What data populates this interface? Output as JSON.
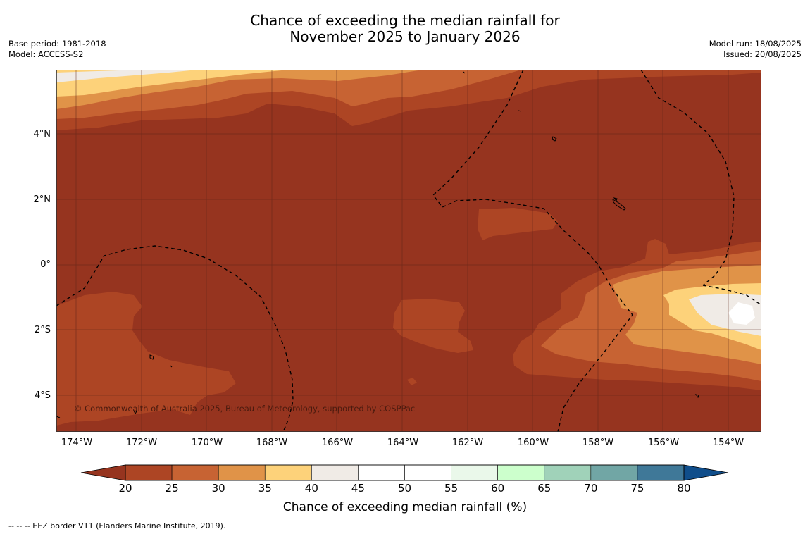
{
  "title": "Chance of exceeding the median rainfall for\nNovember 2025 to January 2026",
  "base_period": "Base period: 1981-2018",
  "model": "Model: ACCESS-S2",
  "model_run": "Model run: 18/08/2025",
  "issued": "Issued: 20/08/2025",
  "copyright": "© Commonwealth of Australia 2025, Bureau of Meteorology, supported by COSPPac",
  "lat_labels": [
    "4°N",
    "2°N",
    "0°",
    "2°S",
    "4°S"
  ],
  "lon_labels": [
    "174°W",
    "172°W",
    "170°W",
    "168°W",
    "166°W",
    "164°W",
    "162°W",
    "160°W",
    "158°W",
    "156°W",
    "154°W"
  ],
  "colorbar": {
    "label": "Chance of exceeding median rainfall (%)",
    "ticks": [
      "20",
      "25",
      "30",
      "35",
      "40",
      "45",
      "50",
      "55",
      "60",
      "65",
      "70",
      "75",
      "80"
    ],
    "colors": [
      "#ad4524",
      "#c76333",
      "#e09348",
      "#fdd27a",
      "#f0ebe6",
      "#ffffff",
      "#ffffff",
      "#eaf8ea",
      "#ccffcc",
      "#a0d2b9",
      "#71a6a5",
      "#3f7898"
    ],
    "under_color": "#96341f",
    "over_color": "#104e8b"
  },
  "footnote": "--  --  -- EEZ border V11 (Flanders Marine Institute, 2019)."
}
